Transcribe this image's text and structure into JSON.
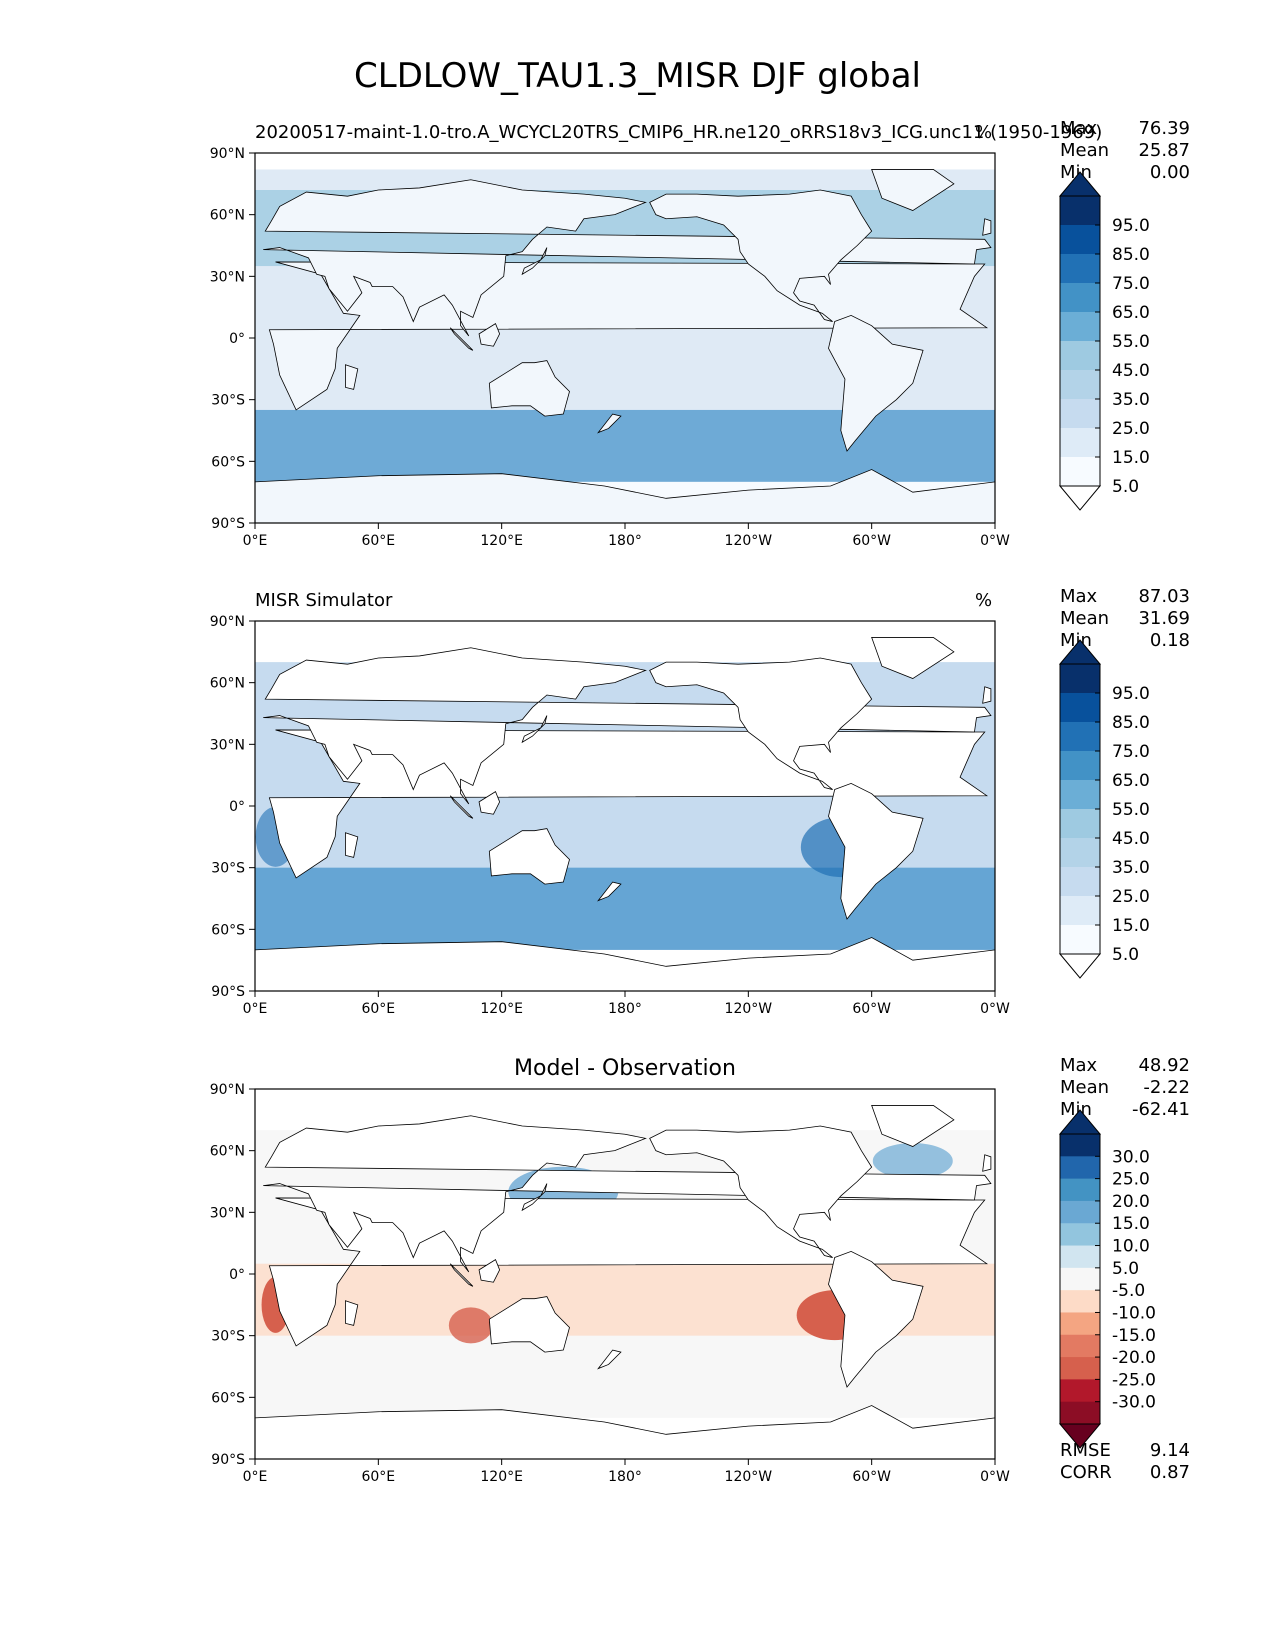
{
  "title": "CLDLOW_TAU1.3_MISR DJF global",
  "panels": [
    {
      "subtitle_left": "20200517-maint-1.0-tro.A_WCYCL20TRS_CMIP6_HR.ne120_oRRS18v3_ICG.unc11 (1950-1969)",
      "subtitle_center": "",
      "subtitle_right": "%",
      "stats": [
        {
          "label": "Max",
          "value": "76.39"
        },
        {
          "label": "Mean",
          "value": "25.87"
        },
        {
          "label": "Min",
          "value": "0.00"
        }
      ],
      "colorbar": {
        "labels": [
          "95.0",
          "85.0",
          "75.0",
          "65.0",
          "55.0",
          "45.0",
          "35.0",
          "25.0",
          "15.0",
          "5.0"
        ],
        "colors": [
          "#08306b",
          "#08519c",
          "#2171b5",
          "#4292c6",
          "#6baed6",
          "#9ecae1",
          "#b3d3e8",
          "#c6dbef",
          "#deebf7",
          "#f7fbff"
        ],
        "over": "#08306b",
        "under": "#ffffff"
      }
    },
    {
      "subtitle_left": "MISR Simulator",
      "subtitle_center": "",
      "subtitle_right": "%",
      "stats": [
        {
          "label": "Max",
          "value": "87.03"
        },
        {
          "label": "Mean",
          "value": "31.69"
        },
        {
          "label": "Min",
          "value": "0.18"
        }
      ],
      "colorbar": {
        "labels": [
          "95.0",
          "85.0",
          "75.0",
          "65.0",
          "55.0",
          "45.0",
          "35.0",
          "25.0",
          "15.0",
          "5.0"
        ],
        "colors": [
          "#08306b",
          "#08519c",
          "#2171b5",
          "#4292c6",
          "#6baed6",
          "#9ecae1",
          "#b3d3e8",
          "#c6dbef",
          "#deebf7",
          "#f7fbff"
        ],
        "over": "#08306b",
        "under": "#ffffff"
      }
    },
    {
      "subtitle_left": "",
      "subtitle_center": "Model - Observation",
      "subtitle_right": "",
      "stats": [
        {
          "label": "Max",
          "value": "48.92"
        },
        {
          "label": "Mean",
          "value": "-2.22"
        },
        {
          "label": "Min",
          "value": "-62.41"
        }
      ],
      "extra_stats": [
        {
          "label": "RMSE",
          "value": "9.14"
        },
        {
          "label": "CORR",
          "value": "0.87"
        }
      ],
      "colorbar": {
        "labels": [
          "30.0",
          "25.0",
          "20.0",
          "15.0",
          "10.0",
          "5.0",
          "-5.0",
          "-10.0",
          "-15.0",
          "-20.0",
          "-25.0",
          "-30.0"
        ],
        "colors": [
          "#08306b",
          "#2166ac",
          "#4393c3",
          "#6aa8d3",
          "#92c5de",
          "#d1e5f0",
          "#f7f7f7",
          "#fddbc7",
          "#f4a582",
          "#e37a62",
          "#d6604d",
          "#b2182b",
          "#8c0d25"
        ],
        "over": "#08306b",
        "under": "#67001f"
      }
    }
  ],
  "axes": {
    "lat_ticks": [
      "90°N",
      "60°N",
      "30°N",
      "0°",
      "30°S",
      "60°S",
      "90°S"
    ],
    "lon_ticks": [
      "0°E",
      "60°E",
      "120°E",
      "180°",
      "120°W",
      "60°W",
      "0°W"
    ]
  },
  "map_colors": {
    "land": "#ffffff",
    "ocean_light": "#dfeaf5",
    "ocean_mid": "#9ecae1",
    "ocean_dark": "#5a9fd0",
    "diff_blue": "#6aa8d3",
    "diff_red": "#d6604d",
    "diff_neutral": "#f7f7f7"
  }
}
